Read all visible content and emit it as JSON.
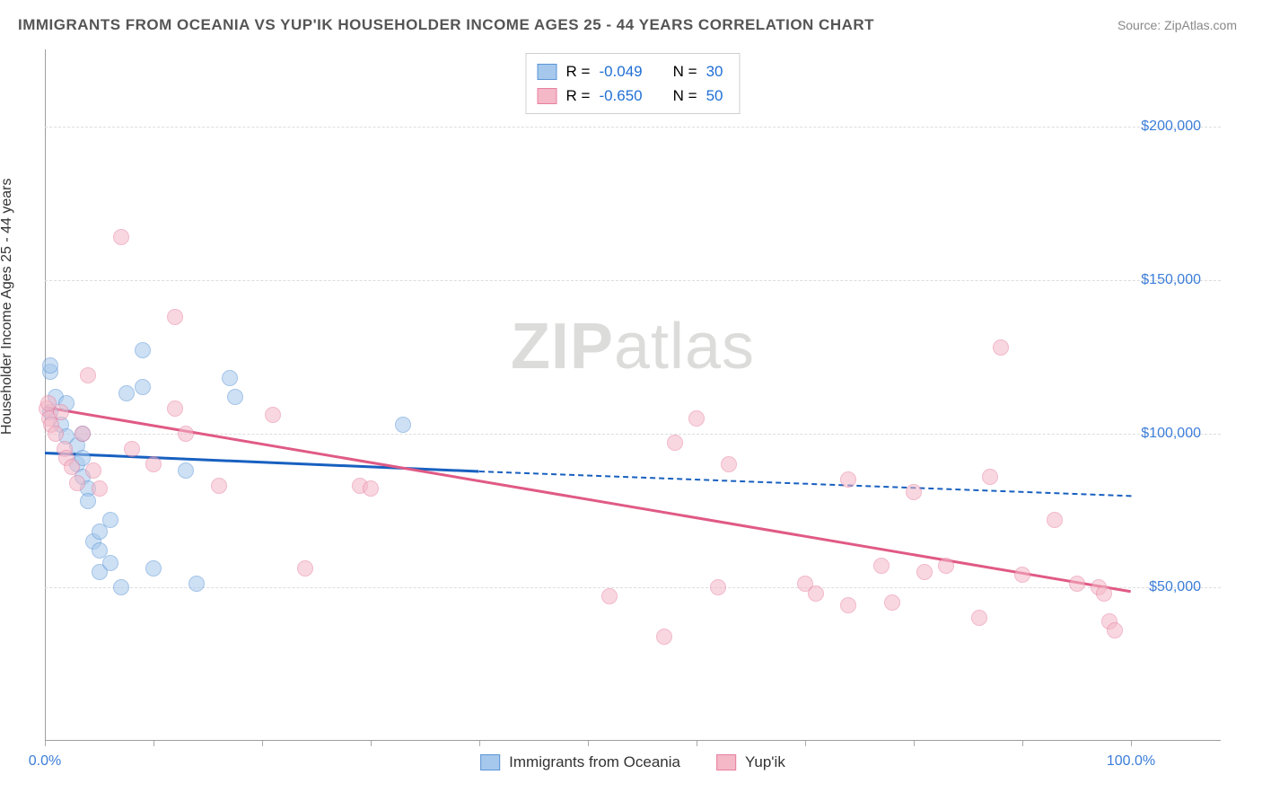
{
  "title": "IMMIGRANTS FROM OCEANIA VS YUP'IK HOUSEHOLDER INCOME AGES 25 - 44 YEARS CORRELATION CHART",
  "source_label": "Source:",
  "source_value": "ZipAtlas.com",
  "y_axis_label": "Householder Income Ages 25 - 44 years",
  "watermark_a": "ZIP",
  "watermark_b": "atlas",
  "chart": {
    "type": "scatter",
    "background": "#ffffff",
    "grid_color": "#dddddd",
    "axis_color": "#9e9e9e",
    "xlim": [
      0,
      100
    ],
    "ylim": [
      0,
      225000
    ],
    "x_ticks": [
      0,
      10,
      20,
      30,
      40,
      50,
      60,
      70,
      80,
      90,
      100
    ],
    "x_tick_labels": {
      "0": "0.0%",
      "100": "100.0%"
    },
    "y_ticks": [
      50000,
      100000,
      150000,
      200000
    ],
    "y_tick_labels": {
      "50000": "$50,000",
      "100000": "$100,000",
      "150000": "$150,000",
      "200000": "$200,000"
    },
    "tick_label_color": "#3b7dd8",
    "tick_label_fontsize": 16,
    "marker_radius": 9,
    "marker_opacity": 0.55,
    "series": [
      {
        "name": "Immigrants from Oceania",
        "fill": "#a6c8ec",
        "stroke": "#5a94d6",
        "trend_color": "#1860c0",
        "trend_width": 3,
        "r_label": "R =",
        "r_value": "-0.049",
        "n_label": "N =",
        "n_value": "30",
        "trend": {
          "x1": 0,
          "y1": 94000,
          "x2": 40,
          "y2": 88000,
          "dash_from_x": 40,
          "x3": 100,
          "y3": 80000
        },
        "points": [
          [
            0.5,
            107000
          ],
          [
            0.5,
            120000
          ],
          [
            0.5,
            122000
          ],
          [
            1.0,
            112000
          ],
          [
            1.5,
            103000
          ],
          [
            2.0,
            99000
          ],
          [
            2.0,
            110000
          ],
          [
            3.0,
            90000
          ],
          [
            3.0,
            96000
          ],
          [
            3.5,
            86000
          ],
          [
            3.5,
            92000
          ],
          [
            3.5,
            100000
          ],
          [
            4.0,
            82000
          ],
          [
            4.0,
            78000
          ],
          [
            4.5,
            65000
          ],
          [
            5.0,
            68000
          ],
          [
            5.0,
            62000
          ],
          [
            5.0,
            55000
          ],
          [
            6.0,
            72000
          ],
          [
            6.0,
            58000
          ],
          [
            7.0,
            50000
          ],
          [
            7.5,
            113000
          ],
          [
            9.0,
            115000
          ],
          [
            9.0,
            127000
          ],
          [
            10.0,
            56000
          ],
          [
            13.0,
            88000
          ],
          [
            17.0,
            118000
          ],
          [
            17.5,
            112000
          ],
          [
            33.0,
            103000
          ],
          [
            14.0,
            51000
          ]
        ]
      },
      {
        "name": "Yup'ik",
        "fill": "#f4b8c7",
        "stroke": "#e87fa0",
        "trend_color": "#e05a85",
        "trend_width": 3,
        "r_label": "R =",
        "r_value": "-0.650",
        "n_label": "N =",
        "n_value": "50",
        "trend": {
          "x1": 0,
          "y1": 109000,
          "x2": 100,
          "y2": 49000
        },
        "points": [
          [
            0.2,
            108000
          ],
          [
            0.3,
            110000
          ],
          [
            0.4,
            105000
          ],
          [
            0.6,
            103000
          ],
          [
            1.0,
            100000
          ],
          [
            1.5,
            107000
          ],
          [
            1.8,
            95000
          ],
          [
            2.0,
            92000
          ],
          [
            2.5,
            89000
          ],
          [
            3.0,
            84000
          ],
          [
            3.5,
            100000
          ],
          [
            4.0,
            119000
          ],
          [
            4.5,
            88000
          ],
          [
            5.0,
            82000
          ],
          [
            7.0,
            164000
          ],
          [
            8.0,
            95000
          ],
          [
            10.0,
            90000
          ],
          [
            12.0,
            108000
          ],
          [
            12.0,
            138000
          ],
          [
            13.0,
            100000
          ],
          [
            16.0,
            83000
          ],
          [
            21.0,
            106000
          ],
          [
            24.0,
            56000
          ],
          [
            29.0,
            83000
          ],
          [
            30.0,
            82000
          ],
          [
            52.0,
            47000
          ],
          [
            57.0,
            34000
          ],
          [
            58.0,
            97000
          ],
          [
            60.0,
            105000
          ],
          [
            62.0,
            50000
          ],
          [
            63.0,
            90000
          ],
          [
            70.0,
            51000
          ],
          [
            71.0,
            48000
          ],
          [
            74.0,
            44000
          ],
          [
            74.0,
            85000
          ],
          [
            77.0,
            57000
          ],
          [
            78.0,
            45000
          ],
          [
            80.0,
            81000
          ],
          [
            81.0,
            55000
          ],
          [
            83.0,
            57000
          ],
          [
            86.0,
            40000
          ],
          [
            87.0,
            86000
          ],
          [
            88.0,
            128000
          ],
          [
            90.0,
            54000
          ],
          [
            93.0,
            72000
          ],
          [
            95.0,
            51000
          ],
          [
            97.0,
            50000
          ],
          [
            97.5,
            48000
          ],
          [
            98.0,
            39000
          ],
          [
            98.5,
            36000
          ]
        ]
      }
    ]
  },
  "legend": {
    "item1": "Immigrants from Oceania",
    "item2": "Yup'ik"
  }
}
